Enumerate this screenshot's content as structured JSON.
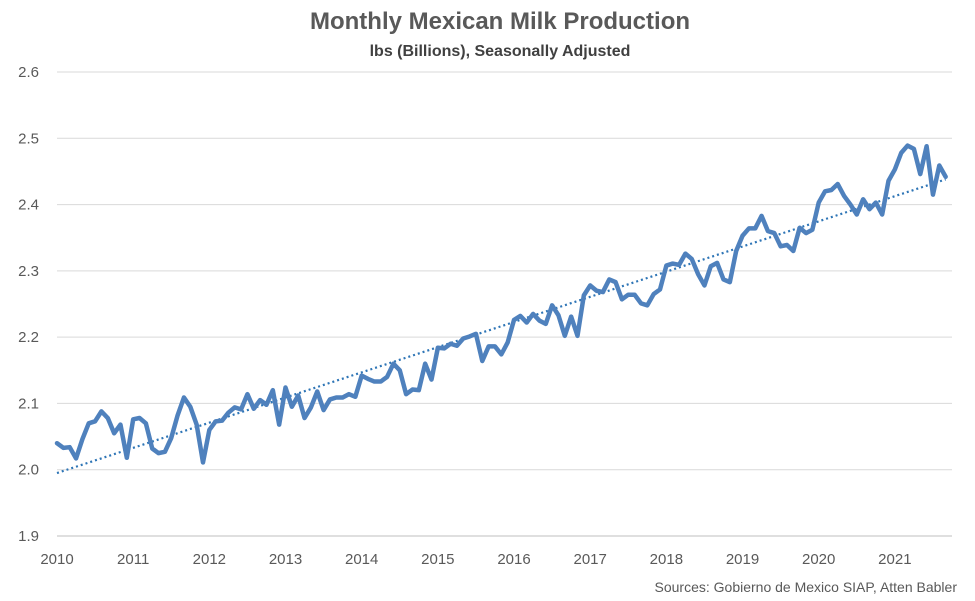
{
  "chart_data": {
    "type": "line",
    "title": "Monthly Mexican Milk Production",
    "subtitle": "lbs (Billions), Seasonally Adjusted",
    "source": "Sources: Gobierno de Mexico SIAP, Atten Babler",
    "xlabel": "",
    "ylabel": "",
    "ylim": [
      1.9,
      2.6
    ],
    "y_ticks": [
      "1.9",
      "2.0",
      "2.1",
      "2.2",
      "2.3",
      "2.4",
      "2.5",
      "2.6"
    ],
    "x_ticks": [
      "2010",
      "2011",
      "2012",
      "2013",
      "2014",
      "2015",
      "2016",
      "2017",
      "2018",
      "2019",
      "2020",
      "2021"
    ],
    "grid": true,
    "legend": "none",
    "series_color": "#4F81BD",
    "trend_color": "#2E75B6",
    "x_start": "2010-01",
    "series": [
      {
        "values": [
          2.04,
          2.033,
          2.034,
          2.017,
          2.046,
          2.07,
          2.073,
          2.088,
          2.078,
          2.055,
          2.068,
          2.018,
          2.076,
          2.078,
          2.07,
          2.032,
          2.025,
          2.027,
          2.048,
          2.082,
          2.109,
          2.095,
          2.068,
          2.011,
          2.06,
          2.073,
          2.074,
          2.086,
          2.094,
          2.091,
          2.114,
          2.092,
          2.105,
          2.098,
          2.12,
          2.068,
          2.124,
          2.095,
          2.112,
          2.078,
          2.094,
          2.118,
          2.09,
          2.106,
          2.109,
          2.109,
          2.114,
          2.11,
          2.142,
          2.137,
          2.133,
          2.133,
          2.14,
          2.16,
          2.15,
          2.114,
          2.121,
          2.12,
          2.16,
          2.136,
          2.184,
          2.183,
          2.19,
          2.187,
          2.198,
          2.201,
          2.205,
          2.164,
          2.186,
          2.186,
          2.174,
          2.192,
          2.226,
          2.232,
          2.222,
          2.235,
          2.225,
          2.22,
          2.248,
          2.233,
          2.202,
          2.231,
          2.202,
          2.263,
          2.278,
          2.27,
          2.268,
          2.287,
          2.283,
          2.257,
          2.264,
          2.264,
          2.251,
          2.248,
          2.265,
          2.272,
          2.308,
          2.311,
          2.309,
          2.326,
          2.318,
          2.295,
          2.278,
          2.307,
          2.312,
          2.287,
          2.283,
          2.33,
          2.353,
          2.364,
          2.364,
          2.383,
          2.36,
          2.357,
          2.337,
          2.339,
          2.33,
          2.365,
          2.357,
          2.362,
          2.403,
          2.42,
          2.422,
          2.431,
          2.413,
          2.4,
          2.385,
          2.408,
          2.393,
          2.403,
          2.385,
          2.436,
          2.453,
          2.478,
          2.489,
          2.484,
          2.446,
          2.488,
          2.415,
          2.459,
          2.442
        ]
      }
    ],
    "trend": {
      "type": "linear",
      "start": 1.995,
      "end": 2.438
    }
  }
}
